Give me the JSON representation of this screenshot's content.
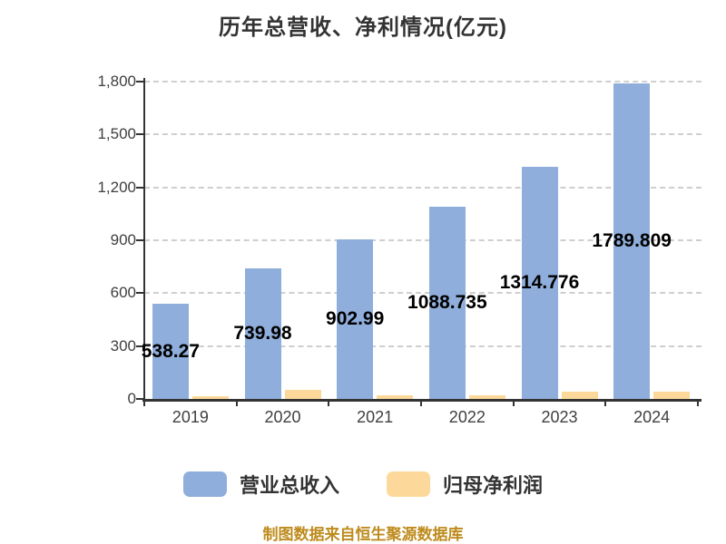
{
  "title": "历年总营收、净利情况(亿元)",
  "credit": "制图数据来自恒生聚源数据库",
  "colors": {
    "revenue_bar": "#8FAEDB",
    "profit_bar": "#FCD99A",
    "grid_line": "#CFCFCF",
    "axis_line": "#333333",
    "tick_label": "#404040",
    "data_label": "#000000",
    "title_text": "#333333",
    "credit_text": "#BE8B1D",
    "background": "#FFFFFF"
  },
  "legend": {
    "position": "bottom",
    "items": [
      {
        "label": "营业总收入",
        "color": "#8FAEDB"
      },
      {
        "label": "归母净利润",
        "color": "#FCD99A"
      }
    ]
  },
  "chart_data": {
    "type": "bar",
    "title": "历年总营收、净利情况(亿元)",
    "categories": [
      "2019",
      "2020",
      "2021",
      "2022",
      "2023",
      "2024"
    ],
    "series": [
      {
        "name": "营业总收入",
        "color": "#8FAEDB",
        "values": [
          538.27,
          739.98,
          902.99,
          1088.735,
          1314.776,
          1789.809
        ],
        "data_labels": [
          "538.27",
          "739.98",
          "902.99",
          "1088.735",
          "1314.776",
          "1789.809"
        ],
        "labels_shown": true
      },
      {
        "name": "归母净利润",
        "color": "#FCD99A",
        "values": [
          16,
          54,
          23,
          19,
          40,
          43
        ],
        "estimated": true,
        "labels_shown": false
      }
    ],
    "xlabel": "",
    "ylabel": "",
    "ylim": [
      0,
      1800
    ],
    "yticks": [
      {
        "label": "1,800",
        "value": 1800
      },
      {
        "label": "1,500",
        "value": 1500
      },
      {
        "label": "1,200",
        "value": 1200
      },
      {
        "label": "900",
        "value": 900
      },
      {
        "label": "600",
        "value": 600
      },
      {
        "label": "300",
        "value": 300
      },
      {
        "label": "0",
        "value": 0
      }
    ],
    "grid": "horizontal-dashed",
    "legend_position": "bottom"
  }
}
